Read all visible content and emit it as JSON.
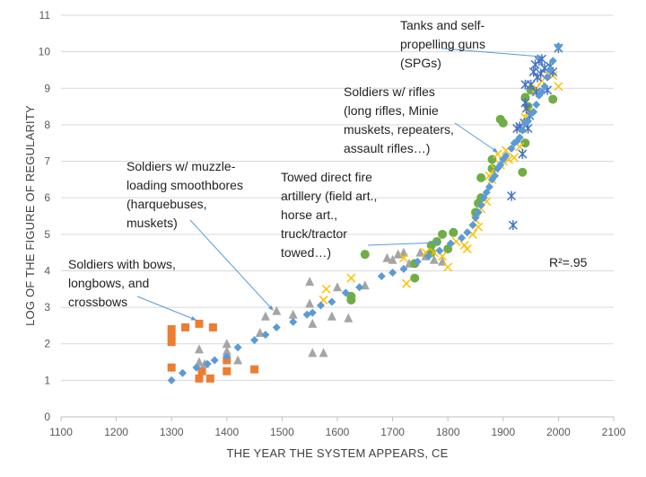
{
  "chart_data": {
    "type": "scatter",
    "xlabel": "THE YEAR THE SYSTEM APPEARS, CE",
    "ylabel": "LOG OF THE FIGURE OF REGULARITY",
    "xlim": [
      1100,
      2100
    ],
    "ylim": [
      0,
      11
    ],
    "x_ticks": [
      "1100",
      "1200",
      "1300",
      "1400",
      "1500",
      "1600",
      "1700",
      "1800",
      "1900",
      "2000",
      "2100"
    ],
    "y_ticks": [
      "0",
      "1",
      "2",
      "3",
      "4",
      "5",
      "6",
      "7",
      "8",
      "9",
      "10",
      "11"
    ],
    "grid": "horizontal",
    "r2_label": "R²=.95",
    "series": [
      {
        "name": "Soldiers with bows, longbows, and crossbows",
        "marker": "square",
        "color": "#ed7d31",
        "points": [
          [
            1300,
            2.4
          ],
          [
            1300,
            2.2
          ],
          [
            1300,
            2.05
          ],
          [
            1300,
            1.35
          ],
          [
            1325,
            2.45
          ],
          [
            1350,
            2.55
          ],
          [
            1350,
            1.05
          ],
          [
            1355,
            1.25
          ],
          [
            1370,
            1.05
          ],
          [
            1375,
            2.45
          ],
          [
            1400,
            1.55
          ],
          [
            1400,
            1.25
          ],
          [
            1450,
            1.3
          ]
        ]
      },
      {
        "name": "Soldiers w/ muzzle-loading smoothbores",
        "marker": "triangle",
        "color": "#a5a5a5",
        "points": [
          [
            1350,
            1.85
          ],
          [
            1350,
            1.5
          ],
          [
            1360,
            1.45
          ],
          [
            1400,
            2.0
          ],
          [
            1400,
            1.8
          ],
          [
            1420,
            1.55
          ],
          [
            1460,
            2.3
          ],
          [
            1470,
            2.75
          ],
          [
            1490,
            2.9
          ],
          [
            1520,
            2.8
          ],
          [
            1550,
            3.7
          ],
          [
            1550,
            3.1
          ],
          [
            1555,
            1.75
          ],
          [
            1555,
            2.55
          ],
          [
            1575,
            1.75
          ],
          [
            1590,
            2.75
          ],
          [
            1600,
            3.55
          ],
          [
            1620,
            2.7
          ],
          [
            1650,
            3.6
          ],
          [
            1690,
            4.35
          ],
          [
            1700,
            4.3
          ],
          [
            1710,
            4.45
          ],
          [
            1720,
            4.5
          ],
          [
            1730,
            4.2
          ],
          [
            1750,
            4.5
          ],
          [
            1760,
            4.4
          ],
          [
            1775,
            4.3
          ],
          [
            1790,
            4.25
          ]
        ]
      },
      {
        "name": "Towed direct fire artillery",
        "marker": "circle",
        "color": "#70ad47",
        "points": [
          [
            1625,
            3.3
          ],
          [
            1625,
            3.2
          ],
          [
            1650,
            4.45
          ],
          [
            1740,
            3.8
          ],
          [
            1740,
            4.2
          ],
          [
            1770,
            4.5
          ],
          [
            1770,
            4.7
          ],
          [
            1780,
            4.8
          ],
          [
            1790,
            5.0
          ],
          [
            1800,
            4.6
          ],
          [
            1810,
            5.05
          ],
          [
            1850,
            5.6
          ],
          [
            1855,
            5.85
          ],
          [
            1860,
            6.0
          ],
          [
            1860,
            6.55
          ],
          [
            1880,
            6.8
          ],
          [
            1880,
            7.05
          ],
          [
            1895,
            8.15
          ],
          [
            1900,
            8.05
          ],
          [
            1935,
            6.7
          ],
          [
            1940,
            7.5
          ],
          [
            1940,
            8.75
          ],
          [
            1945,
            8.5
          ],
          [
            1950,
            8.95
          ],
          [
            1990,
            8.7
          ]
        ]
      },
      {
        "name": "Soldiers w/ rifles",
        "marker": "x",
        "color": "#ffc000",
        "points": [
          [
            1575,
            3.2
          ],
          [
            1580,
            3.5
          ],
          [
            1625,
            3.8
          ],
          [
            1720,
            4.35
          ],
          [
            1725,
            3.65
          ],
          [
            1760,
            4.5
          ],
          [
            1775,
            4.5
          ],
          [
            1790,
            4.4
          ],
          [
            1800,
            4.1
          ],
          [
            1815,
            4.8
          ],
          [
            1830,
            4.7
          ],
          [
            1835,
            4.6
          ],
          [
            1845,
            5.0
          ],
          [
            1850,
            5.4
          ],
          [
            1855,
            5.2
          ],
          [
            1860,
            5.7
          ],
          [
            1870,
            5.9
          ],
          [
            1875,
            6.6
          ],
          [
            1880,
            6.5
          ],
          [
            1885,
            6.8
          ],
          [
            1890,
            7.2
          ],
          [
            1895,
            6.9
          ],
          [
            1900,
            7.0
          ],
          [
            1905,
            7.3
          ],
          [
            1910,
            7.05
          ],
          [
            1920,
            7.1
          ],
          [
            1930,
            7.4
          ],
          [
            1935,
            7.9
          ],
          [
            1940,
            8.2
          ],
          [
            1945,
            8.35
          ],
          [
            1960,
            9.0
          ],
          [
            1970,
            9.2
          ],
          [
            1980,
            9.4
          ],
          [
            1990,
            9.35
          ],
          [
            2000,
            9.05
          ]
        ]
      },
      {
        "name": "Tanks and self-propelling guns (SPGs)",
        "marker": "asterisk",
        "color": "#4472c4",
        "points": [
          [
            1915,
            6.05
          ],
          [
            1918,
            5.25
          ],
          [
            1925,
            7.9
          ],
          [
            1930,
            7.95
          ],
          [
            1935,
            7.2
          ],
          [
            1938,
            8.05
          ],
          [
            1940,
            8.6
          ],
          [
            1940,
            9.1
          ],
          [
            1942,
            8.45
          ],
          [
            1945,
            7.9
          ],
          [
            1948,
            8.25
          ],
          [
            1950,
            9.1
          ],
          [
            1955,
            9.45
          ],
          [
            1958,
            9.65
          ],
          [
            1960,
            8.9
          ],
          [
            1962,
            9.3
          ],
          [
            1965,
            9.75
          ],
          [
            1968,
            9.4
          ],
          [
            1970,
            9.8
          ],
          [
            1975,
            9.55
          ],
          [
            1980,
            8.95
          ],
          [
            1985,
            9.6
          ],
          [
            1990,
            9.45
          ],
          [
            2000,
            10.1
          ]
        ]
      },
      {
        "name": "Fitted trend",
        "marker": "diamond",
        "color": "#5b9bd5",
        "points": [
          [
            1300,
            1.0
          ],
          [
            1320,
            1.2
          ],
          [
            1345,
            1.35
          ],
          [
            1365,
            1.45
          ],
          [
            1378,
            1.55
          ],
          [
            1400,
            1.65
          ],
          [
            1420,
            1.9
          ],
          [
            1450,
            2.1
          ],
          [
            1470,
            2.25
          ],
          [
            1490,
            2.45
          ],
          [
            1520,
            2.6
          ],
          [
            1545,
            2.8
          ],
          [
            1555,
            2.85
          ],
          [
            1570,
            3.05
          ],
          [
            1590,
            3.15
          ],
          [
            1615,
            3.4
          ],
          [
            1640,
            3.55
          ],
          [
            1680,
            3.85
          ],
          [
            1700,
            3.95
          ],
          [
            1720,
            4.05
          ],
          [
            1745,
            4.25
          ],
          [
            1765,
            4.4
          ],
          [
            1785,
            4.55
          ],
          [
            1805,
            4.75
          ],
          [
            1825,
            4.9
          ],
          [
            1835,
            5.05
          ],
          [
            1845,
            5.25
          ],
          [
            1850,
            5.45
          ],
          [
            1855,
            5.6
          ],
          [
            1860,
            5.8
          ],
          [
            1865,
            6.0
          ],
          [
            1870,
            6.15
          ],
          [
            1875,
            6.3
          ],
          [
            1880,
            6.5
          ],
          [
            1885,
            6.6
          ],
          [
            1890,
            6.8
          ],
          [
            1895,
            6.9
          ],
          [
            1900,
            7.05
          ],
          [
            1905,
            7.15
          ],
          [
            1915,
            7.35
          ],
          [
            1920,
            7.5
          ],
          [
            1925,
            7.55
          ],
          [
            1930,
            7.65
          ],
          [
            1935,
            7.85
          ],
          [
            1940,
            8.05
          ],
          [
            1945,
            8.1
          ],
          [
            1950,
            8.3
          ],
          [
            1955,
            8.35
          ],
          [
            1960,
            8.55
          ],
          [
            1965,
            8.8
          ],
          [
            1970,
            8.9
          ],
          [
            1975,
            9.05
          ],
          [
            1980,
            9.3
          ],
          [
            1985,
            9.5
          ],
          [
            1990,
            9.75
          ],
          [
            2000,
            10.15
          ]
        ]
      }
    ],
    "annotations": [
      {
        "lines": [
          "Tanks and self-",
          "propelling guns",
          "(SPGs)"
        ],
        "arrow_to": [
          1965,
          9.8
        ]
      },
      {
        "lines": [
          "Soldiers w/ rifles",
          "(long rifles, Minie",
          "muskets, repeaters,",
          "assault rifles…)"
        ],
        "arrow_to": [
          1875,
          7.25
        ]
      },
      {
        "lines": [
          "Soldiers w/ muzzle-",
          "loading smoothbores",
          "(harquebuses,",
          "muskets)"
        ],
        "arrow_to": [
          1475,
          2.95
        ]
      },
      {
        "lines": [
          "Towed direct fire",
          "artillery (field art.,",
          "horse art.,",
          "truck/tractor",
          "towed…)"
        ],
        "arrow_to": [
          1770,
          4.8
        ]
      },
      {
        "lines": [
          "Soldiers with bows,",
          "longbows, and",
          "crossbows"
        ],
        "arrow_to": [
          1345,
          2.6
        ]
      }
    ]
  }
}
